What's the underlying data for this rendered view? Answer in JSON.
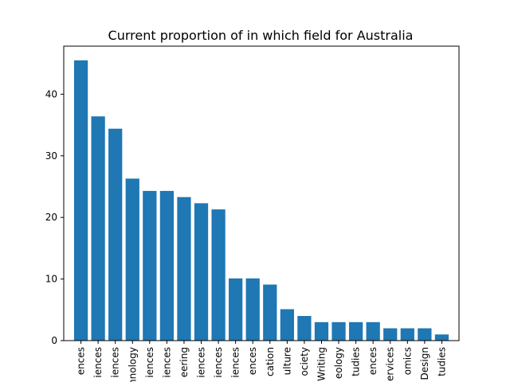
{
  "chart_data": {
    "type": "bar",
    "title": "Current proportion of in which field for Australia",
    "xlabel": "",
    "ylabel": "",
    "categories": [
      "ences",
      "iences",
      "iences",
      "hnology",
      "iences",
      "iences",
      "eering",
      "iences",
      "iences",
      "iences",
      "ences",
      "cation",
      "ulture",
      "ociety",
      "Writing",
      "eology",
      "tudies",
      "ences",
      "ervices",
      "omics",
      "Design",
      "tudies"
    ],
    "values": [
      45.5,
      36.4,
      34.4,
      26.3,
      24.3,
      24.3,
      23.3,
      22.3,
      21.3,
      10.1,
      10.1,
      9.1,
      5.1,
      4.0,
      3.0,
      3.0,
      3.0,
      3.0,
      2.0,
      2.0,
      2.0,
      1.0
    ],
    "ylim": [
      0,
      47.8
    ],
    "yticks": [
      0,
      10,
      20,
      30,
      40
    ],
    "grid": false,
    "bar_color": "#1f77b4"
  }
}
